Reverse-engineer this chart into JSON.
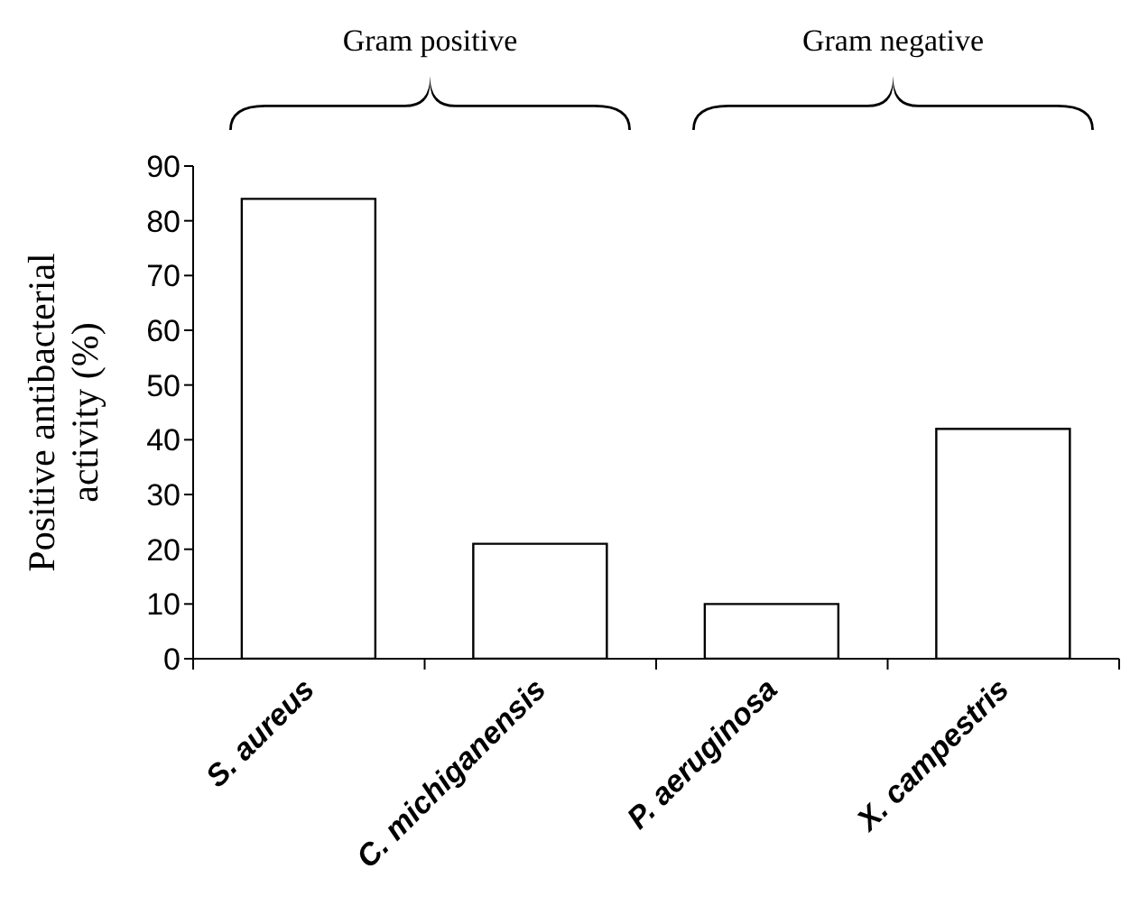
{
  "chart_data": {
    "type": "bar",
    "ylabel": "Positive antibacterial activity (%)",
    "categories": [
      "S. aureus",
      "C. michiganensis",
      "P. aeruginosa",
      "X. campestris"
    ],
    "values": [
      84,
      21,
      10,
      42
    ],
    "color": "#ffffff",
    "ylim": [
      0,
      90
    ],
    "yticks": [
      0,
      10,
      20,
      30,
      40,
      50,
      60,
      70,
      80,
      90
    ],
    "annotations": [
      "Gram positive",
      "Gram negative"
    ]
  }
}
